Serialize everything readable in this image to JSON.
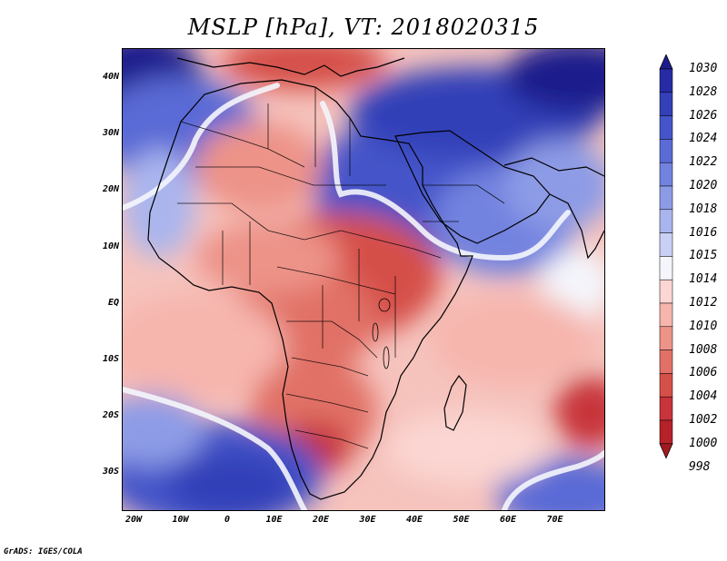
{
  "title": "MSLP [hPa], VT: 2018020315",
  "credit": "GrADS: IGES/COLA",
  "lat_axis": [
    "40N",
    "30N",
    "20N",
    "10N",
    "EQ",
    "10S",
    "20S",
    "30S"
  ],
  "lon_axis": [
    "20W",
    "10W",
    "0",
    "10E",
    "20E",
    "30E",
    "40E",
    "50E",
    "60E",
    "70E"
  ],
  "colorbar": {
    "levels": [
      "1030",
      "1028",
      "1026",
      "1024",
      "1022",
      "1020",
      "1018",
      "1016",
      "1015",
      "1014",
      "1012",
      "1010",
      "1008",
      "1006",
      "1004",
      "1002",
      "1000",
      "998"
    ],
    "colors": [
      "#1c1c8c",
      "#262ba4",
      "#3340b8",
      "#4555c9",
      "#5a6bd6",
      "#7282df",
      "#8d9be6",
      "#aab5ee",
      "#c9d0f5",
      "#f4f6fc",
      "#fbd6d2",
      "#f6b5ad",
      "#ed9388",
      "#e17166",
      "#d55048",
      "#c7343a",
      "#b52229",
      "#a01a20"
    ]
  },
  "map_colors": {
    "background": "#ffffff",
    "coast": "#000000"
  }
}
